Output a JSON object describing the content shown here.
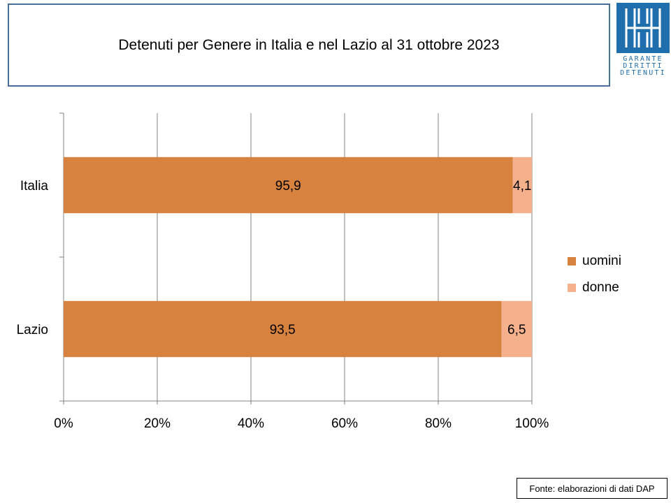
{
  "header": {
    "title": "Detenuti per Genere in Italia e nel Lazio al 31 ottobre 2023",
    "logo_lines": [
      "GARANTE",
      "DIRITTI",
      "DETENUTI"
    ]
  },
  "chart_data": {
    "type": "bar",
    "orientation": "horizontal",
    "stacked": "percent",
    "categories": [
      "Italia",
      "Lazio"
    ],
    "series": [
      {
        "name": "uomini",
        "values": [
          95.9,
          93.5
        ],
        "labels": [
          "95,9",
          "93,5"
        ],
        "color": "#d8823f"
      },
      {
        "name": "donne",
        "values": [
          4.1,
          6.5
        ],
        "labels": [
          "4,1",
          "6,5"
        ],
        "color": "#f4b18b"
      }
    ],
    "x_ticks": [
      "0%",
      "20%",
      "40%",
      "60%",
      "80%",
      "100%"
    ],
    "xlim": [
      0,
      100
    ],
    "grid": "vertical",
    "legend_position": "right"
  },
  "footer": {
    "source": "Fonte: elaborazioni di dati DAP"
  },
  "colors": {
    "title_border": "#4a6e9b",
    "logo_blue": "#1f6fae",
    "grid": "#808080"
  }
}
